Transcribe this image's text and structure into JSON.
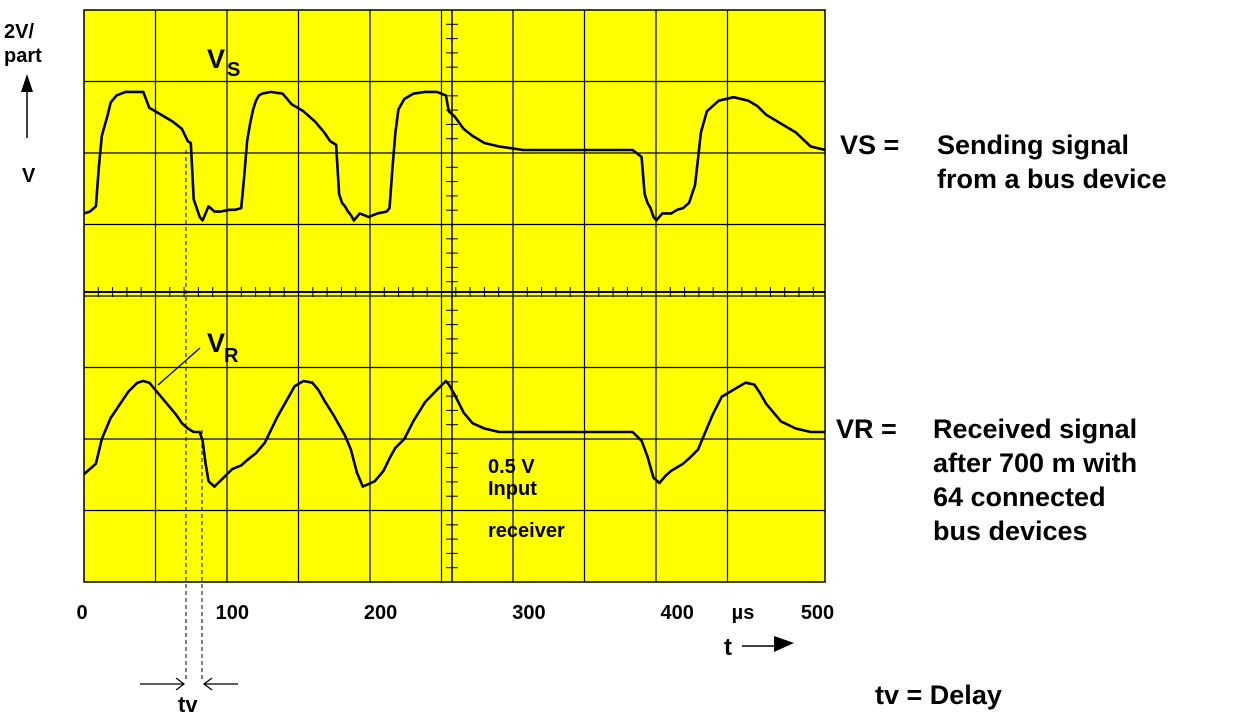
{
  "chart_data": {
    "type": "line",
    "title": "",
    "xlabel": "t",
    "x_unit": "µs",
    "x_ticks": [
      "0",
      "100",
      "200",
      "300",
      "400",
      "500"
    ],
    "xlim": [
      0,
      500
    ],
    "y_scale_label": [
      "2V/",
      "part"
    ],
    "ylabel": "V",
    "grid": true,
    "series": [
      {
        "name": "VS",
        "label_main": "V",
        "label_sub": "S",
        "x": [
          0,
          4,
          8,
          10,
          12,
          16,
          18,
          22,
          28,
          40,
          44,
          50,
          60,
          66,
          70,
          72,
          74,
          76,
          78,
          80,
          82,
          84,
          88,
          92,
          98,
          102,
          106,
          108,
          110,
          112,
          114,
          116,
          118,
          120,
          126,
          134,
          140,
          148,
          156,
          162,
          166,
          170,
          172,
          174,
          176,
          178,
          180,
          182,
          186,
          192,
          198,
          204,
          206,
          208,
          210,
          212,
          216,
          222,
          230,
          238,
          244,
          246,
          250,
          256,
          262,
          270,
          280,
          288,
          296,
          305,
          325,
          345,
          365,
          370,
          376,
          378,
          380,
          382,
          384,
          386,
          390,
          396,
          400,
          404,
          408,
          412,
          414,
          416,
          420,
          428,
          438,
          448,
          454,
          460,
          470,
          480,
          490,
          500
        ],
        "y": [
          -3.6,
          -3.5,
          -3.2,
          -1.0,
          0.8,
          2.0,
          2.7,
          3.1,
          3.3,
          3.3,
          2.4,
          2.1,
          1.6,
          1.2,
          0.5,
          0.4,
          -2.8,
          -3.3,
          -3.8,
          -4.0,
          -3.6,
          -3.2,
          -3.5,
          -3.5,
          -3.4,
          -3.4,
          -3.3,
          -1.5,
          0.5,
          1.5,
          2.3,
          2.8,
          3.1,
          3.2,
          3.3,
          3.2,
          2.6,
          2.2,
          1.6,
          1.0,
          0.5,
          0.3,
          -2.5,
          -3.0,
          -3.2,
          -3.5,
          -3.7,
          -4.0,
          -3.6,
          -3.8,
          -3.6,
          -3.5,
          -3.3,
          -1.0,
          1.0,
          2.3,
          2.9,
          3.2,
          3.3,
          3.3,
          3.1,
          2.2,
          1.9,
          1.2,
          0.8,
          0.4,
          0.2,
          0.1,
          0.0,
          0.0,
          0.0,
          0.0,
          0.0,
          0.0,
          -0.4,
          -2.5,
          -3.0,
          -3.3,
          -3.8,
          -4.0,
          -3.6,
          -3.6,
          -3.4,
          -3.3,
          -3.0,
          -2.0,
          -0.5,
          1.0,
          2.2,
          2.8,
          3.0,
          2.8,
          2.5,
          2.0,
          1.5,
          1.0,
          0.2,
          0.0
        ]
      },
      {
        "name": "VR",
        "label_main": "V",
        "label_sub": "R",
        "x": [
          0,
          4,
          8,
          12,
          18,
          22,
          30,
          36,
          40,
          44,
          50,
          56,
          62,
          66,
          70,
          74,
          78,
          80,
          82,
          84,
          88,
          94,
          100,
          106,
          110,
          116,
          122,
          130,
          138,
          142,
          148,
          154,
          158,
          162,
          168,
          172,
          176,
          180,
          184,
          188,
          196,
          202,
          206,
          210,
          216,
          222,
          230,
          238,
          244,
          246,
          250,
          256,
          262,
          270,
          280,
          300,
          330,
          360,
          370,
          376,
          380,
          384,
          388,
          392,
          396,
          400,
          404,
          408,
          414,
          418,
          424,
          430,
          440,
          446,
          452,
          456,
          460,
          470,
          480,
          490,
          500
        ],
        "y": [
          -2.4,
          -2.1,
          -1.8,
          -0.4,
          0.8,
          1.3,
          2.3,
          2.8,
          2.9,
          2.8,
          2.2,
          1.6,
          1.0,
          0.5,
          0.2,
          0.0,
          0.0,
          -0.5,
          -1.8,
          -2.8,
          -3.1,
          -2.6,
          -2.1,
          -1.9,
          -1.6,
          -1.2,
          -0.6,
          0.8,
          2.0,
          2.6,
          2.9,
          2.8,
          2.4,
          1.8,
          1.0,
          0.4,
          -0.2,
          -1.0,
          -2.3,
          -3.1,
          -2.8,
          -2.2,
          -1.5,
          -0.9,
          -0.4,
          0.6,
          1.7,
          2.4,
          2.9,
          2.7,
          2.1,
          1.1,
          0.5,
          0.2,
          0.0,
          0.0,
          0.0,
          0.0,
          0.0,
          -0.5,
          -1.4,
          -2.6,
          -2.9,
          -2.5,
          -2.2,
          -2.0,
          -1.8,
          -1.5,
          -1.0,
          -0.2,
          1.0,
          2.0,
          2.5,
          2.8,
          2.7,
          2.2,
          1.6,
          0.6,
          0.2,
          0.0,
          0.0
        ]
      }
    ],
    "annotations": {
      "input_receiver": [
        "0.5 V",
        "Input",
        "receiver"
      ],
      "delay_symbol": "tv"
    }
  },
  "legend": {
    "vs": {
      "key": "VS =",
      "lines": [
        "Sending signal",
        "from a bus device"
      ]
    },
    "vr": {
      "key": "VR =",
      "lines": [
        "Received signal",
        "after 700 m with",
        "64 connected",
        "bus devices"
      ]
    },
    "tv": {
      "key": "tv =",
      "text": "Delay"
    }
  },
  "colors": {
    "screen": "#ffff00",
    "trace": "#000000",
    "grid": "#000000"
  }
}
